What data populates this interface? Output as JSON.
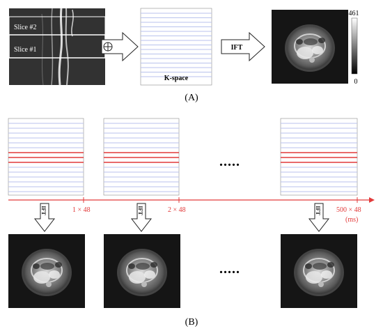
{
  "panel_a": {
    "slice_labels": [
      "Slice #2",
      "Slice #1"
    ],
    "sum_symbol": "⊕",
    "kspace_label": "K-space",
    "ift_label": "IFT",
    "colorbar": {
      "max": "461",
      "min": "0"
    },
    "caption": "(A)"
  },
  "panel_b": {
    "time_labels": [
      "1 × 48",
      "2 × 48",
      "500 × 48"
    ],
    "time_unit": "(ms)",
    "ellipsis": ".....",
    "ift_label": "IFT",
    "caption": "(B)"
  },
  "colors": {
    "kspace_line": "#b8c2ec",
    "sampled_line": "#e23a3a",
    "timeline": "#e23a3a",
    "image_bg": "#151515"
  }
}
